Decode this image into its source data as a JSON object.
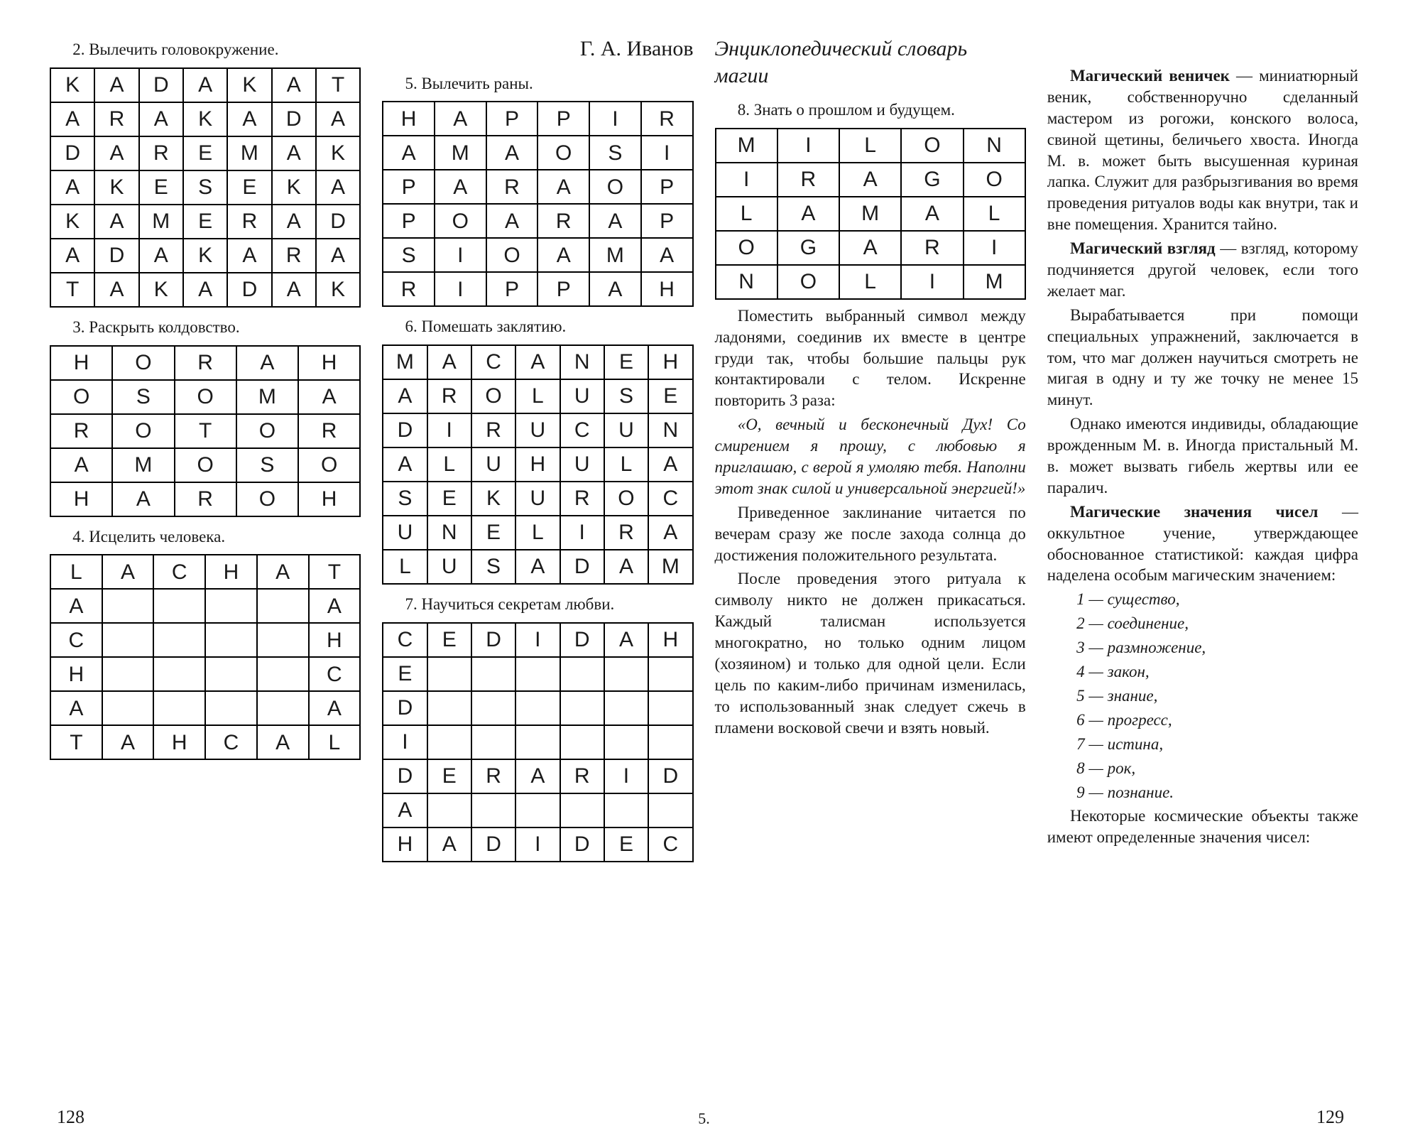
{
  "header_left": "Г. А. Иванов",
  "header_right": "Энциклопедический словарь магии",
  "page_left": "128",
  "page_right": "129",
  "footer_center": "5.",
  "col1": {
    "c2": "2. Вылечить головокружение.",
    "t2": [
      [
        "K",
        "A",
        "D",
        "A",
        "K",
        "A",
        "T"
      ],
      [
        "A",
        "R",
        "A",
        "K",
        "A",
        "D",
        "A"
      ],
      [
        "D",
        "A",
        "R",
        "E",
        "M",
        "A",
        "K"
      ],
      [
        "A",
        "K",
        "E",
        "S",
        "E",
        "K",
        "A"
      ],
      [
        "K",
        "A",
        "M",
        "E",
        "R",
        "A",
        "D"
      ],
      [
        "A",
        "D",
        "A",
        "K",
        "A",
        "R",
        "A"
      ],
      [
        "T",
        "A",
        "K",
        "A",
        "D",
        "A",
        "K"
      ]
    ],
    "c3": "3. Раскрыть колдовство.",
    "t3": [
      [
        "H",
        "O",
        "R",
        "A",
        "H"
      ],
      [
        "O",
        "S",
        "O",
        "M",
        "A"
      ],
      [
        "R",
        "O",
        "T",
        "O",
        "R"
      ],
      [
        "A",
        "M",
        "O",
        "S",
        "O"
      ],
      [
        "H",
        "A",
        "R",
        "O",
        "H"
      ]
    ],
    "c4": "4. Исцелить человека.",
    "t4": [
      [
        "L",
        "A",
        "C",
        "H",
        "A",
        "T"
      ],
      [
        "A",
        "",
        "",
        "",
        "",
        "A"
      ],
      [
        "C",
        "",
        "",
        "",
        "",
        "H"
      ],
      [
        "H",
        "",
        "",
        "",
        "",
        "C"
      ],
      [
        "A",
        "",
        "",
        "",
        "",
        "A"
      ],
      [
        "T",
        "A",
        "H",
        "C",
        "A",
        "L"
      ]
    ]
  },
  "col2": {
    "c5": "5. Вылечить раны.",
    "t5": [
      [
        "H",
        "A",
        "P",
        "P",
        "I",
        "R"
      ],
      [
        "A",
        "M",
        "A",
        "O",
        "S",
        "I"
      ],
      [
        "P",
        "A",
        "R",
        "A",
        "O",
        "P"
      ],
      [
        "P",
        "O",
        "A",
        "R",
        "A",
        "P"
      ],
      [
        "S",
        "I",
        "O",
        "A",
        "M",
        "A"
      ],
      [
        "R",
        "I",
        "P",
        "P",
        "A",
        "H"
      ]
    ],
    "c6": "6. Помешать заклятию.",
    "t6": [
      [
        "M",
        "A",
        "C",
        "A",
        "N",
        "E",
        "H"
      ],
      [
        "A",
        "R",
        "O",
        "L",
        "U",
        "S",
        "E"
      ],
      [
        "D",
        "I",
        "R",
        "U",
        "C",
        "U",
        "N"
      ],
      [
        "A",
        "L",
        "U",
        "H",
        "U",
        "L",
        "A"
      ],
      [
        "S",
        "E",
        "K",
        "U",
        "R",
        "O",
        "C"
      ],
      [
        "U",
        "N",
        "E",
        "L",
        "I",
        "R",
        "A"
      ],
      [
        "L",
        "U",
        "S",
        "A",
        "D",
        "A",
        "M"
      ]
    ],
    "c7": "7. Научиться секретам любви.",
    "t7": [
      [
        "C",
        "E",
        "D",
        "I",
        "D",
        "A",
        "H"
      ],
      [
        "E",
        "",
        "",
        "",
        "",
        "",
        ""
      ],
      [
        "D",
        "",
        "",
        "",
        "",
        "",
        ""
      ],
      [
        "I",
        "",
        "",
        "",
        "",
        "",
        ""
      ],
      [
        "D",
        "E",
        "R",
        "A",
        "R",
        "I",
        "D"
      ],
      [
        "A",
        "",
        "",
        "",
        "",
        "",
        ""
      ],
      [
        "H",
        "A",
        "D",
        "I",
        "D",
        "E",
        "C"
      ]
    ]
  },
  "col3": {
    "c8": "8. Знать о прошлом и будущем.",
    "t8": [
      [
        "M",
        "I",
        "L",
        "O",
        "N"
      ],
      [
        "I",
        "R",
        "A",
        "G",
        "O"
      ],
      [
        "L",
        "A",
        "M",
        "A",
        "L"
      ],
      [
        "O",
        "G",
        "A",
        "R",
        "I"
      ],
      [
        "N",
        "O",
        "L",
        "I",
        "M"
      ]
    ],
    "p1": "Поместить выбранный символ между ладонями, соединив их вместе в центре груди так, чтобы большие пальцы рук контактировали с телом. Искренне повторить 3 раза:",
    "quote": "«О, вечный и бесконечный Дух! Со смирением я прошу, с любовью я приглашаю, с верой я умоляю тебя. Наполни этот знак силой и универсальной энергией!»",
    "p2": "Приведенное заклинание читается по вечерам сразу же после захода солнца до достижения положительного результата.",
    "p3": "После проведения этого ритуала к символу никто не должен прикасаться. Каждый талисман используется многократно, но только одним лицом (хозяином) и только для одной цели. Если цель по каким-либо причинам изменилась, то использованный знак следует сжечь в пламени восковой свечи и взять новый."
  },
  "col4": {
    "d1_title": "Магический веничек",
    "d1": " — миниатюрный веник, собственноручно сделанный мастером из рогожи, конского волоса, свиной щетины, беличьего хвоста. Иногда М. в. может быть высушенная куриная лапка. Служит для разбрызгивания во время проведения ритуалов воды как внутри, так и вне помещения. Хранится тайно.",
    "d2_title": "Магический взгляд",
    "d2": " — взгляд, которому подчиняется другой человек, если того желает маг.",
    "d2b": "Вырабатывается при помощи специальных упражнений, заключается в том, что маг должен научиться смотреть не мигая в одну и ту же точку не менее 15 минут.",
    "d2c": "Однако имеются индивиды, обладающие врожденным М. в. Иногда пристальный М. в. может вызвать гибель жертвы или ее паралич.",
    "d3_title": "Магические значения чисел",
    "d3": " — оккультное учение, утверждающее обоснованное статистикой: каждая цифра наделена особым магическим значением:",
    "nums": [
      "1 — существо,",
      "2 — соединение,",
      "3 — размножение,",
      "4 — закон,",
      "5 — знание,",
      "6 — прогресс,",
      "7 — истина,",
      "8 — рок,",
      "9 — познание."
    ],
    "p_end": "Некоторые космические объекты также имеют определенные значения чисел:"
  }
}
